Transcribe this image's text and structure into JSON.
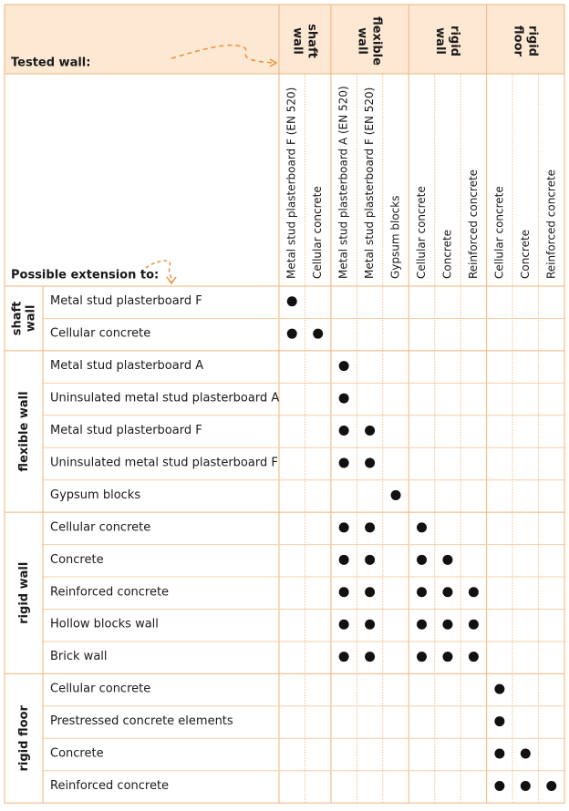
{
  "header": {
    "tested_wall": "Tested wall:",
    "possible_extension": "Possible extension to:"
  },
  "column_groups": [
    {
      "label": [
        "shaft",
        "wall"
      ],
      "columns": [
        "Metal stud plasterboard F (EN 520)",
        "Cellular concrete"
      ]
    },
    {
      "label": [
        "flexible",
        "wall"
      ],
      "columns": [
        "Metal stud plasterboard A (EN 520)",
        "Metal stud plasterboard F (EN 520)",
        "Gypsum blocks"
      ]
    },
    {
      "label": [
        "rigid",
        "wall"
      ],
      "columns": [
        "Cellular concrete",
        "Concrete",
        "Reinforced concrete"
      ]
    },
    {
      "label": [
        "rigid",
        "floor"
      ],
      "columns": [
        "Cellular concrete",
        "Concrete",
        "Reinforced concrete"
      ]
    }
  ],
  "row_groups": [
    {
      "label": [
        "shaft",
        "wall"
      ],
      "rows": [
        {
          "label": "Metal stud plasterboard F",
          "marks": [
            1,
            0,
            0,
            0,
            0,
            0,
            0,
            0,
            0,
            0,
            0
          ]
        },
        {
          "label": "Cellular concrete",
          "marks": [
            1,
            1,
            0,
            0,
            0,
            0,
            0,
            0,
            0,
            0,
            0
          ]
        }
      ]
    },
    {
      "label": [
        "flexible wall"
      ],
      "rows": [
        {
          "label": "Metal stud plasterboard A",
          "marks": [
            0,
            0,
            1,
            0,
            0,
            0,
            0,
            0,
            0,
            0,
            0
          ]
        },
        {
          "label": "Uninsulated metal stud plasterboard A",
          "marks": [
            0,
            0,
            1,
            0,
            0,
            0,
            0,
            0,
            0,
            0,
            0
          ]
        },
        {
          "label": "Metal stud plasterboard F",
          "marks": [
            0,
            0,
            1,
            1,
            0,
            0,
            0,
            0,
            0,
            0,
            0
          ]
        },
        {
          "label": "Uninsulated metal stud plasterboard F",
          "marks": [
            0,
            0,
            1,
            1,
            0,
            0,
            0,
            0,
            0,
            0,
            0
          ]
        },
        {
          "label": "Gypsum blocks",
          "marks": [
            0,
            0,
            0,
            0,
            1,
            0,
            0,
            0,
            0,
            0,
            0
          ]
        }
      ]
    },
    {
      "label": [
        "rigid wall"
      ],
      "rows": [
        {
          "label": "Cellular concrete",
          "marks": [
            0,
            0,
            1,
            1,
            0,
            1,
            0,
            0,
            0,
            0,
            0
          ]
        },
        {
          "label": "Concrete",
          "marks": [
            0,
            0,
            1,
            1,
            0,
            1,
            1,
            0,
            0,
            0,
            0
          ]
        },
        {
          "label": "Reinforced concrete",
          "marks": [
            0,
            0,
            1,
            1,
            0,
            1,
            1,
            1,
            0,
            0,
            0
          ]
        },
        {
          "label": "Hollow blocks wall",
          "marks": [
            0,
            0,
            1,
            1,
            0,
            1,
            1,
            1,
            0,
            0,
            0
          ]
        },
        {
          "label": "Brick wall",
          "marks": [
            0,
            0,
            1,
            1,
            0,
            1,
            1,
            1,
            0,
            0,
            0
          ]
        }
      ]
    },
    {
      "label": [
        "rigid floor"
      ],
      "rows": [
        {
          "label": "Cellular concrete",
          "marks": [
            0,
            0,
            0,
            0,
            0,
            0,
            0,
            0,
            1,
            0,
            0
          ]
        },
        {
          "label": "Prestressed concrete elements",
          "marks": [
            0,
            0,
            0,
            0,
            0,
            0,
            0,
            0,
            1,
            0,
            0
          ]
        },
        {
          "label": "Concrete",
          "marks": [
            0,
            0,
            0,
            0,
            0,
            0,
            0,
            0,
            1,
            1,
            0
          ]
        },
        {
          "label": "Reinforced concrete",
          "marks": [
            0,
            0,
            0,
            0,
            0,
            0,
            0,
            0,
            1,
            1,
            1
          ]
        }
      ]
    }
  ]
}
